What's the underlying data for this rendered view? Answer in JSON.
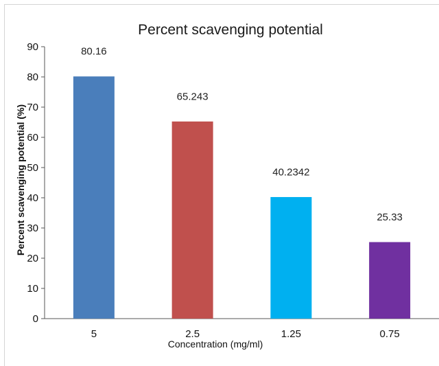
{
  "chart_data": {
    "type": "bar",
    "title": "Percent scavenging potential",
    "xlabel": "Concentration (mg/ml)",
    "ylabel": "Percent scavenging potential  (%)",
    "categories": [
      "5",
      "2.5",
      "1.25",
      "0.75"
    ],
    "values": [
      80.16,
      65.243,
      40.2342,
      25.33
    ],
    "data_labels": [
      "80.16",
      "65.243",
      "40.2342",
      "25.33"
    ],
    "colors": [
      "#4a7ebb",
      "#c0504d",
      "#00b0f0",
      "#7030a0"
    ],
    "ylim": [
      0,
      90
    ],
    "yticks": [
      0,
      10,
      20,
      30,
      40,
      50,
      60,
      70,
      80,
      90
    ],
    "grid": false,
    "legend": "none"
  }
}
